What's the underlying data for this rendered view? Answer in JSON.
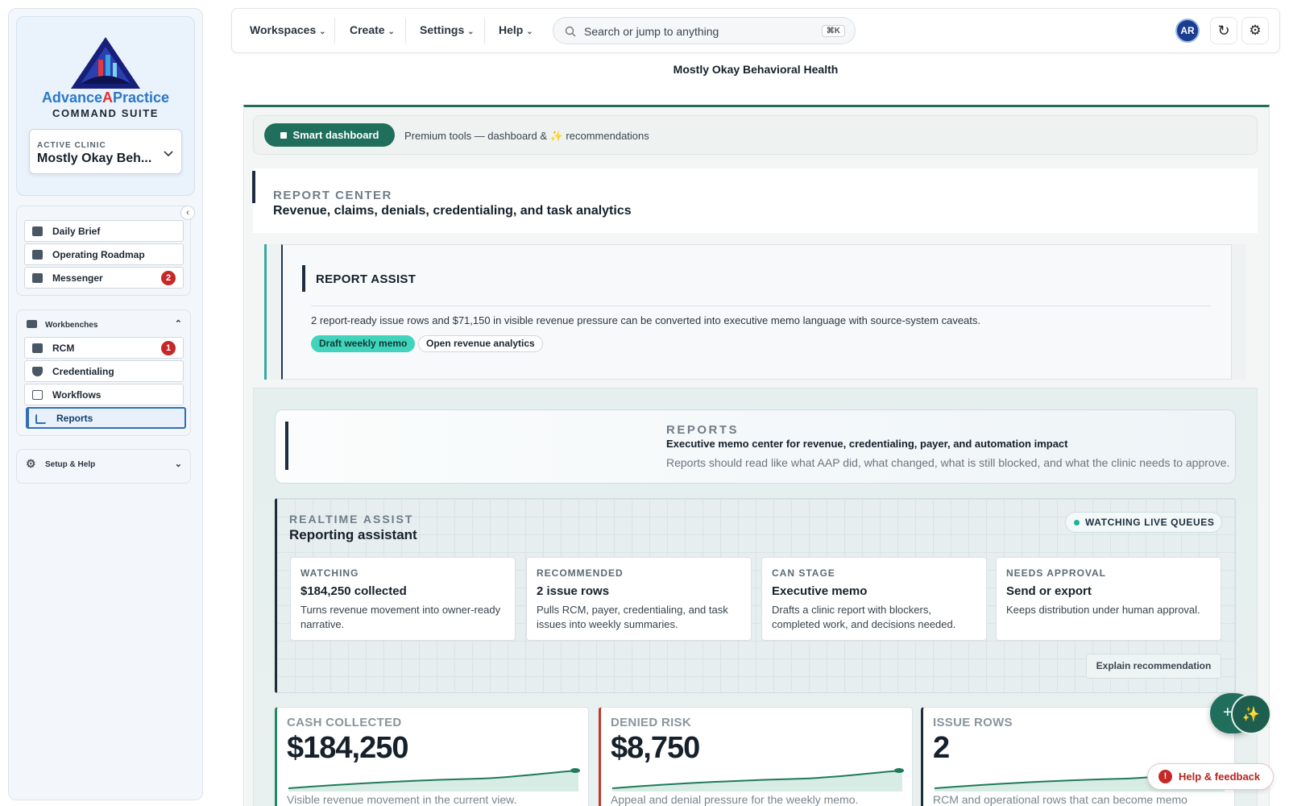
{
  "sidebar": {
    "brand": {
      "part1": "Advance",
      "part2": "A",
      "part3": "Practice",
      "subtitle": "COMMAND SUITE"
    },
    "active_clinic": {
      "label": "ACTIVE CLINIC",
      "value": "Mostly Okay Beh..."
    },
    "nav": [
      {
        "label": "Daily Brief"
      },
      {
        "label": "Operating Roadmap"
      },
      {
        "label": "Messenger",
        "badge": 2
      }
    ],
    "workbenches": {
      "title": "Workbenches",
      "items": [
        {
          "label": "RCM",
          "badge": 1
        },
        {
          "label": "Credentialing"
        },
        {
          "label": "Workflows"
        },
        {
          "label": "Reports"
        }
      ]
    },
    "setup": {
      "label": "Setup & Help"
    }
  },
  "topbar": {
    "menus": [
      "Workspaces",
      "Create",
      "Settings",
      "Help"
    ],
    "search": {
      "placeholder": "Search or jump to anything",
      "shortcut": "⌘K"
    },
    "avatar": "AR"
  },
  "page": {
    "clinic_title": "Mostly Okay Behavioral Health",
    "smart_dashboard": {
      "button": "Smart dashboard",
      "note": "Premium tools — dashboard & ✨ recommendations"
    },
    "report_center": {
      "eyebrow": "REPORT CENTER",
      "title": "Revenue, claims, denials, credentialing, and task analytics"
    },
    "report_assist": {
      "title": "REPORT ASSIST",
      "text": "2 report-ready issue rows and $71,150 in visible revenue pressure can be converted into executive memo language with source-system caveats.",
      "actions": [
        "Draft weekly memo",
        "Open revenue analytics"
      ]
    },
    "reports_header": {
      "eyebrow": "REPORTS",
      "title": "Executive memo center for revenue, credentialing, payer, and automation impact",
      "text": "Reports should read like what AAP did, what changed, what is still blocked, and what the clinic needs to approve."
    },
    "realtime_assist": {
      "eyebrow": "REALTIME ASSIST",
      "title": "Reporting assistant",
      "status": "WATCHING LIVE QUEUES",
      "cards": [
        {
          "label": "WATCHING",
          "title": "$184,250 collected",
          "text": "Turns revenue movement into owner-ready narrative."
        },
        {
          "label": "RECOMMENDED",
          "title": "2 issue rows",
          "text": "Pulls RCM, payer, credentialing, and task issues into weekly summaries."
        },
        {
          "label": "CAN STAGE",
          "title": "Executive memo",
          "text": "Drafts a clinic report with blockers, completed work, and decisions needed."
        },
        {
          "label": "NEEDS APPROVAL",
          "title": "Send or export",
          "text": "Keeps distribution under human approval."
        }
      ],
      "action": "Explain recommendation"
    },
    "kpis": [
      {
        "label": "CASH COLLECTED",
        "value": "$184,250",
        "note": "Visible revenue movement in the current view."
      },
      {
        "label": "DENIED RISK",
        "value": "$8,750",
        "note": "Appeal and denial pressure for the weekly memo."
      },
      {
        "label": "ISSUE ROWS",
        "value": "2",
        "note": "RCM and operational rows that can become memo"
      }
    ]
  },
  "help_button": "Help & feedback"
}
